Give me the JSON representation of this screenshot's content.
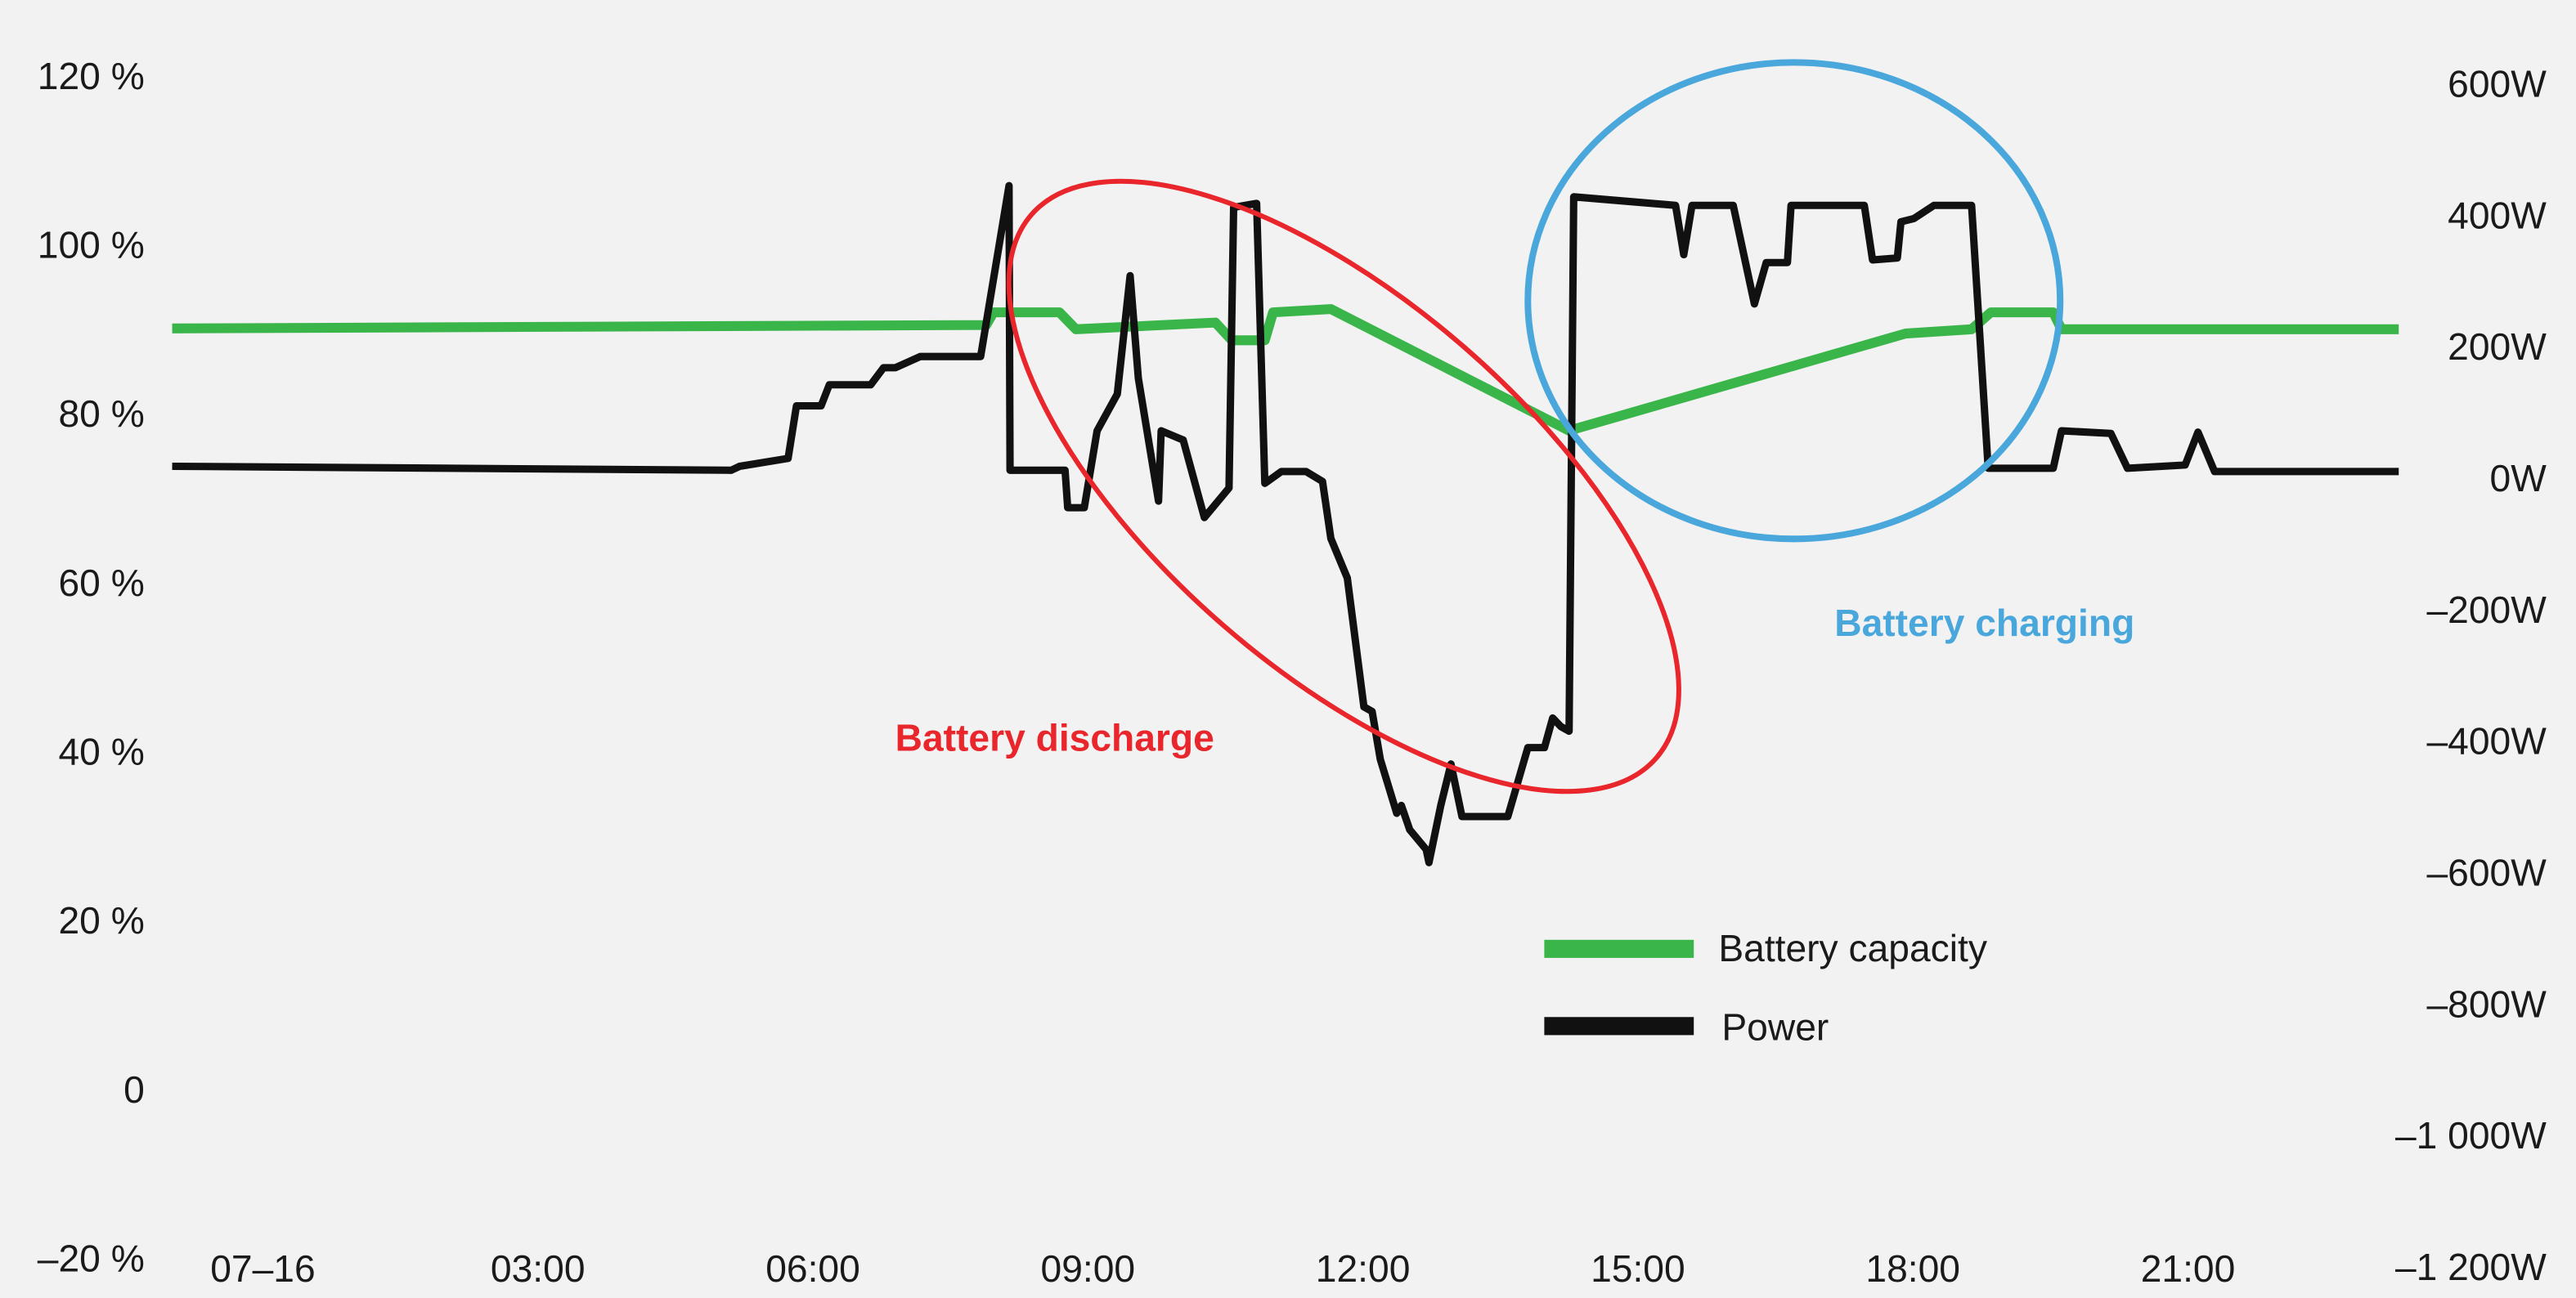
{
  "chart_data": {
    "type": "line",
    "title": "",
    "xlabel": "",
    "ylabel_left": "",
    "ylabel_right": "",
    "x_unit": "hours since 07-16 00:00",
    "x_ticks": [
      {
        "value": 0,
        "label": "07–16"
      },
      {
        "value": 3,
        "label": "03:00"
      },
      {
        "value": 6,
        "label": "06:00"
      },
      {
        "value": 9,
        "label": "09:00"
      },
      {
        "value": 12,
        "label": "12:00"
      },
      {
        "value": 15,
        "label": "15:00"
      },
      {
        "value": 18,
        "label": "18:00"
      },
      {
        "value": 21,
        "label": "21:00"
      }
    ],
    "y_left": {
      "range": [
        -20,
        120
      ],
      "ticks": [
        {
          "value": 120,
          "label": "120 %"
        },
        {
          "value": 100,
          "label": "100 %"
        },
        {
          "value": 80,
          "label": "80 %"
        },
        {
          "value": 60,
          "label": "60 %"
        },
        {
          "value": 40,
          "label": "40 %"
        },
        {
          "value": 20,
          "label": "20 %"
        },
        {
          "value": 0,
          "label": "0"
        },
        {
          "value": -20,
          "label": "–20 %"
        }
      ]
    },
    "y_right": {
      "range": [
        -1200,
        600
      ],
      "ticks": [
        {
          "value": 600,
          "label": "600W"
        },
        {
          "value": 400,
          "label": "400W"
        },
        {
          "value": 200,
          "label": "200W"
        },
        {
          "value": 0,
          "label": "0W"
        },
        {
          "value": -200,
          "label": "–200W"
        },
        {
          "value": -400,
          "label": "–400W"
        },
        {
          "value": -600,
          "label": "–600W"
        },
        {
          "value": -800,
          "label": "–800W"
        },
        {
          "value": -1000,
          "label": "–1 000W"
        },
        {
          "value": -1200,
          "label": "–1 200W"
        }
      ]
    },
    "grid": false,
    "legend_position": "bottom-center",
    "series": [
      {
        "name": "Battery capacity",
        "axis": "left",
        "color": "#3ab54a",
        "points": [
          [
            -0.99,
            90.1
          ],
          [
            7.89,
            90.5
          ],
          [
            7.97,
            92
          ],
          [
            8.69,
            92
          ],
          [
            8.87,
            90
          ],
          [
            10.39,
            90.8
          ],
          [
            10.57,
            88.7
          ],
          [
            10.93,
            88.7
          ],
          [
            11.02,
            92
          ],
          [
            11.65,
            92.4
          ],
          [
            14.25,
            78
          ],
          [
            17.92,
            89.5
          ],
          [
            18.64,
            90
          ],
          [
            18.85,
            92
          ],
          [
            19.53,
            92
          ],
          [
            19.62,
            90
          ],
          [
            23.3,
            90
          ]
        ]
      },
      {
        "name": "Power",
        "axis": "right",
        "color": "#111111",
        "points": [
          [
            -0.99,
            18
          ],
          [
            5.11,
            12
          ],
          [
            5.2,
            18
          ],
          [
            5.73,
            30
          ],
          [
            5.82,
            110
          ],
          [
            6.09,
            110
          ],
          [
            6.18,
            142
          ],
          [
            6.63,
            142
          ],
          [
            6.77,
            168
          ],
          [
            6.9,
            168
          ],
          [
            7.17,
            185
          ],
          [
            7.83,
            185
          ],
          [
            8.14,
            445
          ],
          [
            8.15,
            12
          ],
          [
            8.75,
            12
          ],
          [
            8.78,
            -45
          ],
          [
            8.96,
            -45
          ],
          [
            9.1,
            72
          ],
          [
            9.32,
            128
          ],
          [
            9.46,
            308
          ],
          [
            9.55,
            152
          ],
          [
            9.77,
            -35
          ],
          [
            9.8,
            72
          ],
          [
            10.04,
            58
          ],
          [
            10.27,
            -60
          ],
          [
            10.54,
            -15
          ],
          [
            10.59,
            412
          ],
          [
            10.84,
            418
          ],
          [
            10.93,
            -8
          ],
          [
            11.11,
            10
          ],
          [
            11.38,
            10
          ],
          [
            11.56,
            -5
          ],
          [
            11.65,
            -92
          ],
          [
            11.83,
            -152
          ],
          [
            12.01,
            -348
          ],
          [
            12.1,
            -355
          ],
          [
            12.19,
            -428
          ],
          [
            12.37,
            -510
          ],
          [
            12.42,
            -498
          ],
          [
            12.51,
            -535
          ],
          [
            12.69,
            -565
          ],
          [
            12.72,
            -585
          ],
          [
            12.85,
            -498
          ],
          [
            12.96,
            -435
          ],
          [
            13.08,
            -515
          ],
          [
            13.58,
            -515
          ],
          [
            13.8,
            -410
          ],
          [
            13.98,
            -410
          ],
          [
            14.07,
            -365
          ],
          [
            14.16,
            -378
          ],
          [
            14.25,
            -385
          ],
          [
            14.3,
            428
          ],
          [
            15.41,
            415
          ],
          [
            15.5,
            340
          ],
          [
            15.59,
            415
          ],
          [
            16.04,
            415
          ],
          [
            16.27,
            265
          ],
          [
            16.4,
            328
          ],
          [
            16.63,
            328
          ],
          [
            16.67,
            415
          ],
          [
            17.47,
            415
          ],
          [
            17.56,
            332
          ],
          [
            17.83,
            335
          ],
          [
            17.87,
            390
          ],
          [
            18.01,
            395
          ],
          [
            18.23,
            415
          ],
          [
            18.64,
            415
          ],
          [
            18.82,
            15
          ],
          [
            19.53,
            15
          ],
          [
            19.62,
            72
          ],
          [
            20.16,
            68
          ],
          [
            20.34,
            15
          ],
          [
            20.97,
            20
          ],
          [
            21.11,
            70
          ],
          [
            21.29,
            10
          ],
          [
            23.3,
            10
          ]
        ]
      }
    ],
    "annotations": [
      {
        "text": "Battery discharge",
        "color": "#e8262b",
        "shape": "ellipse"
      },
      {
        "text": "Battery charging",
        "color": "#4aa7dc",
        "shape": "circle"
      }
    ]
  }
}
